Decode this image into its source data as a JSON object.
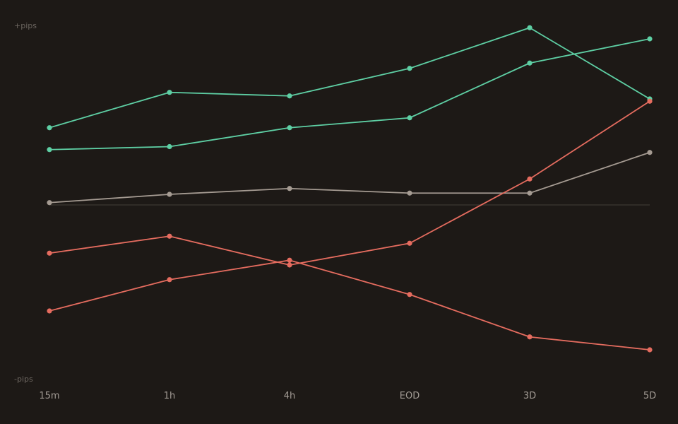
{
  "chart_data": {
    "type": "line",
    "y_axis": {
      "top_label": "+pips",
      "bottom_label": "-pips"
    },
    "categories": [
      "15m",
      "1h",
      "4h",
      "EOD",
      "3D",
      "5D"
    ],
    "ylim": [
      -100,
      100
    ],
    "zero_line": true,
    "grid": false,
    "colors": {
      "background": "#1d1916",
      "positive": "#5ecfa4",
      "negative": "#e56c5f",
      "neutral": "#a59b92",
      "zero_line": "#37322d"
    },
    "series": [
      {
        "color": "positive",
        "values": [
          43.7,
          63.7,
          61.7,
          77.3,
          100.3,
          60.0
        ]
      },
      {
        "color": "positive",
        "values": [
          31.3,
          33.0,
          43.7,
          49.3,
          80.3,
          94.0
        ]
      },
      {
        "color": "neutral",
        "values": [
          1.3,
          6.0,
          9.3,
          6.7,
          6.7,
          29.7
        ]
      },
      {
        "color": "negative",
        "values": [
          -27.3,
          -17.7,
          -34.0,
          -21.7,
          14.7,
          58.7
        ]
      },
      {
        "color": "negative",
        "values": [
          -60.0,
          -42.3,
          -31.3,
          -50.7,
          -74.7,
          -82.0
        ]
      }
    ]
  }
}
